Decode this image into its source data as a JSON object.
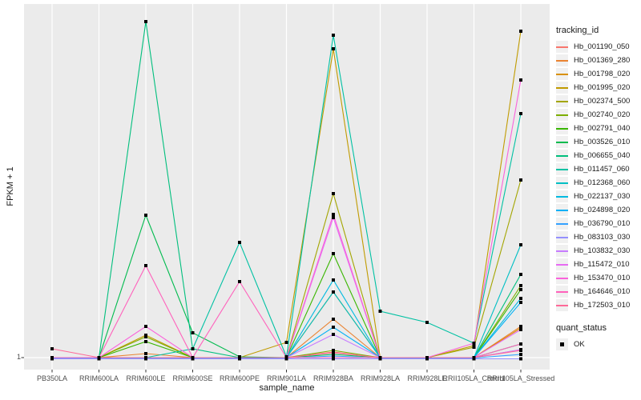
{
  "legend": {
    "tracking_title": "tracking_id",
    "quant_title": "quant_status",
    "quant_label": "OK"
  },
  "colors": {
    "panel_bg": "#ebebeb",
    "grid": "#ffffff",
    "tick": "#333333",
    "marker": "#000000",
    "axis_text": "#4d4d4d"
  },
  "chart_data": {
    "type": "line",
    "title": "",
    "xlabel": "sample_name",
    "ylabel": "FPKM + 1",
    "y_tick_labels": [
      "1"
    ],
    "value_unit": "relative height above the y=1 baseline; only the '1' tick is labeled in the source figure",
    "grid": "vertical white gridlines on gray panel, horizontal gridline at y=1",
    "legend_position": "right",
    "marker": {
      "shape": "square",
      "color": "#000000",
      "label": "OK"
    },
    "categories": [
      "PB350LA",
      "RRIM600LA",
      "RRIM600LE",
      "RRIM600SE",
      "RRIM600PE",
      "RRIM901LA",
      "RRIM928BA",
      "RRIM928LA",
      "RRIM928LE",
      "RRII105LA_Control",
      "RRII105LA_Stressed"
    ],
    "series": [
      {
        "name": "Hb_001190_050",
        "color": "#F8766D",
        "values": [
          0,
          0,
          0,
          0,
          0,
          0,
          7,
          0,
          0,
          0,
          10
        ]
      },
      {
        "name": "Hb_001369_280",
        "color": "#EA8331",
        "values": [
          0,
          0,
          5,
          0,
          0,
          0,
          48,
          0,
          0,
          0,
          39
        ]
      },
      {
        "name": "Hb_001798_020",
        "color": "#D89000",
        "values": [
          0,
          0,
          0,
          0,
          0,
          0,
          82,
          0,
          0,
          0,
          37
        ]
      },
      {
        "name": "Hb_001995_020",
        "color": "#C09B00",
        "values": [
          0,
          0,
          28,
          0,
          0,
          19,
          386,
          0,
          0,
          15,
          408
        ]
      },
      {
        "name": "Hb_002374_500",
        "color": "#A3A500",
        "values": [
          0,
          0,
          0,
          0,
          0,
          0,
          205,
          0,
          0,
          13,
          222
        ]
      },
      {
        "name": "Hb_002740_020",
        "color": "#7CAE00",
        "values": [
          0,
          0,
          26,
          0,
          0,
          0,
          9,
          0,
          0,
          0,
          90
        ]
      },
      {
        "name": "Hb_002791_040",
        "color": "#39B600",
        "values": [
          0,
          0,
          20,
          0,
          0,
          0,
          130,
          0,
          0,
          0,
          85
        ]
      },
      {
        "name": "Hb_003526_010",
        "color": "#00BB4E",
        "values": [
          0,
          0,
          178,
          31,
          1,
          0,
          4,
          0,
          0,
          0,
          17
        ]
      },
      {
        "name": "Hb_006655_040",
        "color": "#00BF7D",
        "values": [
          0,
          0,
          420,
          11,
          0,
          0,
          0,
          0,
          0,
          0,
          104
        ]
      },
      {
        "name": "Hb_011457_060",
        "color": "#00C1A3",
        "values": [
          0,
          0,
          0,
          11,
          144,
          1,
          403,
          58,
          44,
          18,
          305
        ]
      },
      {
        "name": "Hb_012368_060",
        "color": "#00BFC4",
        "values": [
          0,
          0,
          0,
          0,
          0,
          0,
          82,
          0,
          0,
          0,
          141
        ]
      },
      {
        "name": "Hb_022137_030",
        "color": "#00BAE0",
        "values": [
          0,
          0,
          0,
          0,
          0,
          0,
          97,
          0,
          0,
          0,
          74
        ]
      },
      {
        "name": "Hb_024898_020",
        "color": "#00B0F6",
        "values": [
          0,
          0,
          0,
          0,
          0,
          0,
          38,
          0,
          0,
          0,
          69
        ]
      },
      {
        "name": "Hb_036790_010",
        "color": "#35A2FF",
        "values": [
          -0.5,
          -0.5,
          -0.5,
          -0.5,
          -0.5,
          -0.5,
          2,
          -0.5,
          -0.5,
          -0.5,
          4
        ]
      },
      {
        "name": "Hb_083103_030",
        "color": "#9590FF",
        "values": [
          -1.5,
          -1.5,
          -1.5,
          -1.5,
          -1.5,
          -1.5,
          -1.5,
          -1.5,
          -1.5,
          -1.5,
          -1.5
        ]
      },
      {
        "name": "Hb_103832_030",
        "color": "#C77CFF",
        "values": [
          0,
          0,
          0,
          0,
          0,
          0,
          29,
          0,
          0,
          0,
          10
        ]
      },
      {
        "name": "Hb_115472_010",
        "color": "#E76BF3",
        "values": [
          0,
          0,
          0,
          0,
          0,
          0,
          175,
          0,
          0,
          0,
          35
        ]
      },
      {
        "name": "Hb_153470_010",
        "color": "#FA62DB",
        "values": [
          0,
          0,
          39,
          0,
          0,
          0,
          179,
          0,
          0,
          18,
          347
        ]
      },
      {
        "name": "Hb_164646_010",
        "color": "#FF62BC",
        "values": [
          0,
          0,
          115,
          0,
          95,
          0,
          0,
          0,
          0,
          0,
          17
        ]
      },
      {
        "name": "Hb_172503_010",
        "color": "#FF6A98",
        "values": [
          11,
          0,
          0,
          0,
          0,
          0,
          6,
          0,
          0,
          0,
          9
        ]
      }
    ]
  }
}
